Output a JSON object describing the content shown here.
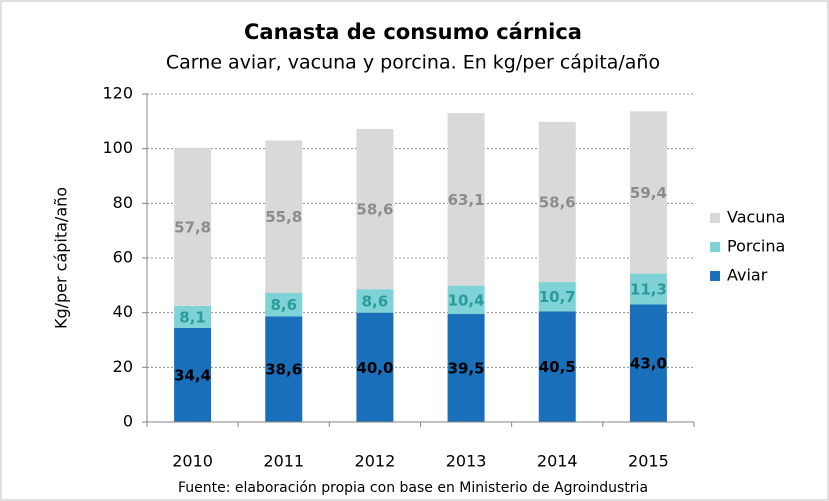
{
  "chart_data": {
    "type": "stacked_bar",
    "title": "Canasta de consumo cárnica",
    "subtitle": "Carne aviar, vacuna y porcina. En kg/per cápita/año",
    "y_label": "Kg/per cápita/año",
    "source": "Fuente: elaboración propia con base en Ministerio de Agroindustria",
    "categories": [
      "2010",
      "2011",
      "2012",
      "2013",
      "2014",
      "2015"
    ],
    "series": [
      {
        "name": "Aviar",
        "color": "#1a6fba",
        "label_color": "#000000",
        "values": [
          34.4,
          38.6,
          40.0,
          39.5,
          40.5,
          43.0
        ],
        "value_labels": [
          "34,4",
          "38,6",
          "40,0",
          "39,5",
          "40,5",
          "43,0"
        ]
      },
      {
        "name": "Porcina",
        "color": "#7fd3d6",
        "label_color": "#2a9a9c",
        "values": [
          8.1,
          8.6,
          8.6,
          10.4,
          10.7,
          11.3
        ],
        "value_labels": [
          "8,1",
          "8,6",
          "8,6",
          "10,4",
          "10,7",
          "11,3"
        ]
      },
      {
        "name": "Vacuna",
        "color": "#d9d9d9",
        "label_color": "#8c8c8c",
        "values": [
          57.8,
          55.8,
          58.6,
          63.1,
          58.6,
          59.4
        ],
        "value_labels": [
          "57,8",
          "55,8",
          "58,6",
          "63,1",
          "58,6",
          "59,4"
        ]
      }
    ],
    "ylim": [
      0,
      120
    ],
    "yticks": [
      0,
      20,
      40,
      60,
      80,
      100,
      120
    ],
    "grid": true,
    "legend": "right"
  }
}
